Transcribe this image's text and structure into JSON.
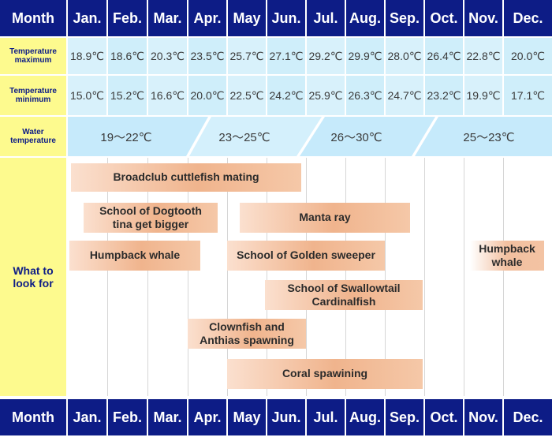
{
  "months": [
    "Month",
    "Jan.",
    "Feb.",
    "Mar.",
    "Apr.",
    "May",
    "Jun.",
    "Jul.",
    "Aug.",
    "Sep.",
    "Oct.",
    "Nov.",
    "Dec."
  ],
  "rows": {
    "temp_max_label": "Temperature maximum",
    "temp_max": [
      "18.9℃",
      "18.6℃",
      "20.3℃",
      "23.5℃",
      "25.7℃",
      "27.1℃",
      "29.2℃",
      "29.9℃",
      "28.0℃",
      "26.4℃",
      "22.8℃",
      "20.0℃"
    ],
    "temp_min_label": "Temperature minimum",
    "temp_min": [
      "15.0℃",
      "15.2℃",
      "16.6℃",
      "20.0℃",
      "22.5℃",
      "24.2℃",
      "25.9℃",
      "26.3℃",
      "24.7℃",
      "23.2℃",
      "19.9℃",
      "17.1℃"
    ],
    "water_label": "Water temperature",
    "water_bands": [
      "19～22℃",
      "23～25℃",
      "26～30℃",
      "25～23℃"
    ],
    "look_label": "What to look for"
  },
  "activities": [
    "Broadclub cuttlefish mating",
    "School of Dogtooth tina get bigger",
    "Manta ray",
    "Humpback whale",
    "School of Golden sweeper",
    "Humpback whale",
    "School of Swallowtail Cardinalfish",
    "Clownfish and Anthias spawning",
    "Coral spawining"
  ],
  "colors": {
    "header": "#0d1c86",
    "label_bg": "#fdfa8e",
    "temp_bg": "#d8f1fb",
    "water_bg": "#c8ebfb",
    "activity": "#f0b48d"
  }
}
